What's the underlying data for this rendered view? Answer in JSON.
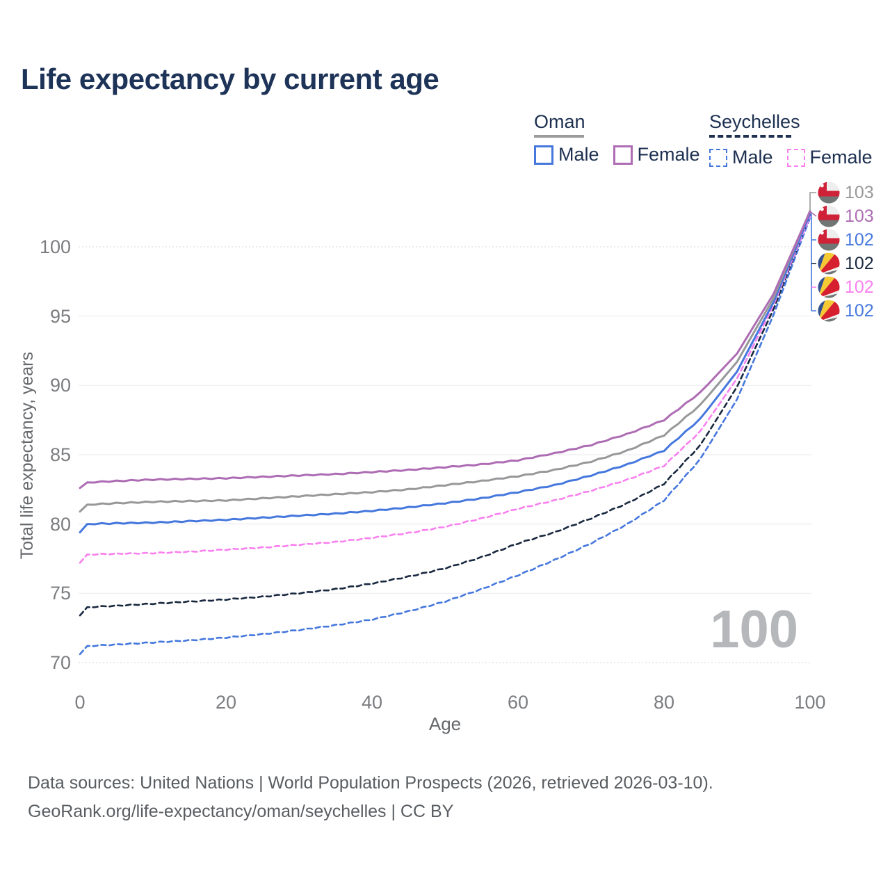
{
  "title": "Life expectancy by current age",
  "legend": {
    "groups": [
      {
        "name": "Oman",
        "line": "solid",
        "underline_color": "#9a9b9d",
        "items": [
          {
            "label": "Male",
            "color": "#4577dd",
            "dashed": false
          },
          {
            "label": "Female",
            "color": "#ad6cb3",
            "dashed": false
          }
        ]
      },
      {
        "name": "Seychelles",
        "line": "dashed",
        "underline_color": "#1d3050",
        "items": [
          {
            "label": "Male",
            "color": "#4577dd",
            "dashed": true
          },
          {
            "label": "Female",
            "color": "#f980ef",
            "dashed": true
          }
        ]
      }
    ]
  },
  "chart_data": {
    "type": "line",
    "title": "Life expectancy by current age",
    "xlabel": "Age",
    "ylabel": "Total life expectancy, years",
    "xlim": [
      0,
      100
    ],
    "ylim": [
      69.5,
      103.5
    ],
    "grid": true,
    "legend_position": "top-right",
    "xticks": [
      "0",
      "20",
      "40",
      "60",
      "80",
      "100"
    ],
    "yticks": [
      "70",
      "75",
      "80",
      "85",
      "90",
      "95",
      "100"
    ],
    "x": [
      0,
      1,
      5,
      10,
      15,
      20,
      25,
      30,
      35,
      40,
      45,
      50,
      55,
      60,
      65,
      70,
      75,
      80,
      85,
      90,
      95,
      100
    ],
    "series": [
      {
        "name": "Seychelles — Male",
        "country": "Seychelles",
        "sex": "Male",
        "line": "dashed",
        "color": "#4577dd",
        "width": 2.6,
        "values": [
          70.6,
          71.2,
          71.3,
          71.45,
          71.6,
          71.8,
          72.05,
          72.35,
          72.7,
          73.1,
          73.7,
          74.4,
          75.3,
          76.3,
          77.4,
          78.6,
          80.0,
          81.7,
          84.7,
          89.0,
          95.1,
          102.1
        ]
      },
      {
        "name": "Seychelles — Both sexes",
        "country": "Seychelles",
        "sex": "Both",
        "line": "dashed",
        "color": "#18283f",
        "width": 2.6,
        "values": [
          73.4,
          74.0,
          74.1,
          74.25,
          74.4,
          74.55,
          74.75,
          75.0,
          75.3,
          75.7,
          76.2,
          76.8,
          77.6,
          78.6,
          79.4,
          80.4,
          81.5,
          82.9,
          85.7,
          89.9,
          95.5,
          102.3
        ]
      },
      {
        "name": "Seychelles — Female",
        "country": "Seychelles",
        "sex": "Female",
        "line": "dashed",
        "color": "#f980ef",
        "width": 2.6,
        "values": [
          77.2,
          77.8,
          77.85,
          77.9,
          78.0,
          78.15,
          78.3,
          78.5,
          78.7,
          79.0,
          79.35,
          79.8,
          80.4,
          81.1,
          81.7,
          82.4,
          83.2,
          84.2,
          86.7,
          90.5,
          95.8,
          102.2
        ]
      },
      {
        "name": "Oman — Male",
        "country": "Oman",
        "sex": "Male",
        "line": "solid",
        "color": "#4577dd",
        "width": 3,
        "values": [
          79.4,
          80.0,
          80.05,
          80.1,
          80.2,
          80.3,
          80.45,
          80.6,
          80.75,
          80.95,
          81.2,
          81.5,
          81.85,
          82.3,
          82.8,
          83.5,
          84.3,
          85.3,
          87.6,
          91.0,
          96.0,
          102.4
        ]
      },
      {
        "name": "Oman — Both sexes",
        "country": "Oman",
        "sex": "Both",
        "line": "solid",
        "color": "#97989a",
        "width": 3,
        "values": [
          80.9,
          81.4,
          81.5,
          81.6,
          81.65,
          81.7,
          81.85,
          82.0,
          82.15,
          82.3,
          82.5,
          82.8,
          83.1,
          83.45,
          83.9,
          84.5,
          85.3,
          86.4,
          88.6,
          91.7,
          96.3,
          102.6
        ]
      },
      {
        "name": "Oman — Female",
        "country": "Oman",
        "sex": "Female",
        "line": "solid",
        "color": "#ad6cb3",
        "width": 3,
        "values": [
          82.6,
          83.0,
          83.1,
          83.2,
          83.25,
          83.3,
          83.4,
          83.5,
          83.6,
          83.75,
          83.9,
          84.1,
          84.3,
          84.6,
          85.1,
          85.7,
          86.5,
          87.5,
          89.5,
          92.3,
          96.6,
          102.55
        ]
      }
    ],
    "end_labels": [
      {
        "text": "103",
        "flag": "oman",
        "color": "#97989a"
      },
      {
        "text": "103",
        "flag": "oman",
        "color": "#ad6cb3"
      },
      {
        "text": "102",
        "flag": "oman",
        "color": "#4577dd"
      },
      {
        "text": "102",
        "flag": "seychelles",
        "color": "#18283f"
      },
      {
        "text": "102",
        "flag": "seychelles",
        "color": "#f980ef"
      },
      {
        "text": "102",
        "flag": "seychelles",
        "color": "#4577dd"
      }
    ],
    "watermark": "100"
  },
  "footer": {
    "line1": "Data sources: United Nations | World Population Prospects (2026, retrieved 2026-03-10).",
    "line2": "GeoRank.org/life-expectancy/oman/seychelles | CC BY"
  }
}
